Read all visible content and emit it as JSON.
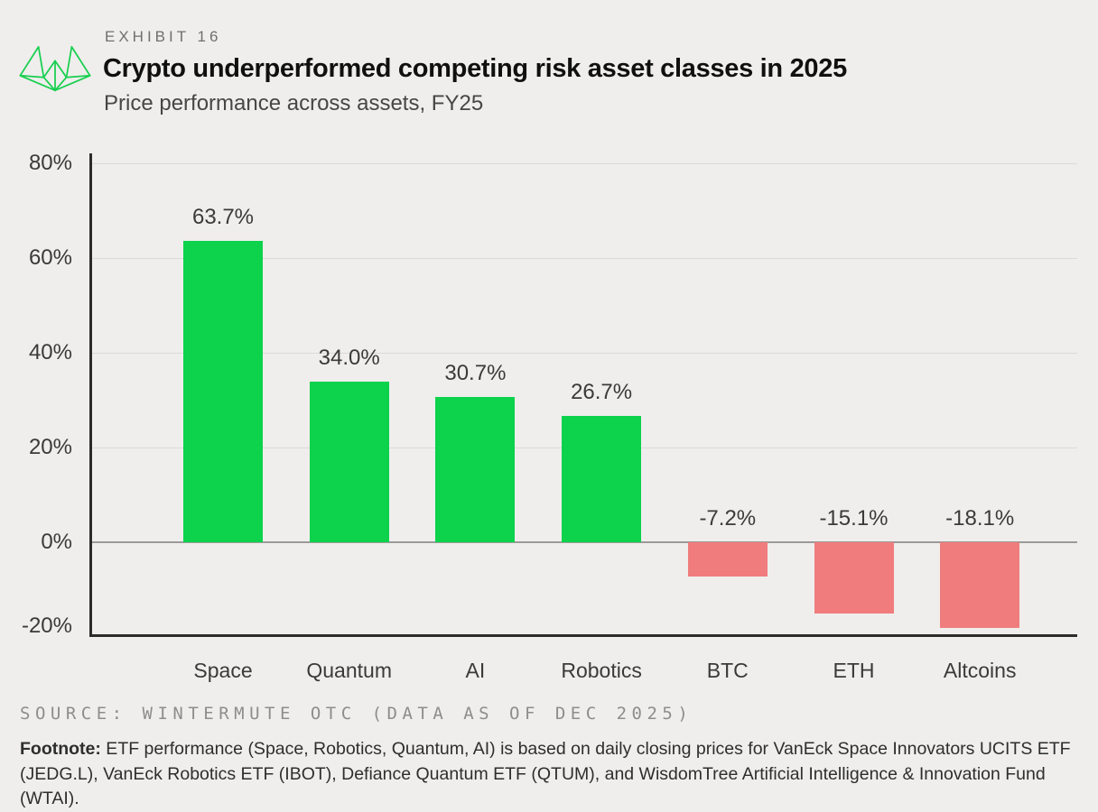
{
  "header": {
    "exhibit_label": "EXHIBIT 16"
  },
  "chart_data": {
    "type": "bar",
    "title": "Crypto underperformed competing risk asset classes in 2025",
    "subtitle": "Price performance across assets, FY25",
    "categories": [
      "Space",
      "Quantum",
      "AI",
      "Robotics",
      "BTC",
      "ETH",
      "Altcoins"
    ],
    "values": [
      63.7,
      34.0,
      30.7,
      26.7,
      -7.2,
      -15.1,
      -18.1
    ],
    "value_labels": [
      "63.7%",
      "34.0%",
      "30.7%",
      "26.7%",
      "-7.2%",
      "-15.1%",
      "-18.1%"
    ],
    "xlabel": "",
    "ylabel": "",
    "y_ticks": [
      80,
      60,
      40,
      20,
      0,
      -20
    ],
    "y_tick_labels": [
      "80%",
      "60%",
      "40%",
      "20%",
      "0%",
      "-20%"
    ],
    "ylim": [
      -20,
      82
    ],
    "grid": "horizontal-only",
    "legend": "none",
    "colors": {
      "positive_bar": "#0cd24c",
      "negative_bar": "#f07c7d",
      "axis": "#2b2b2b",
      "gridline": "#dbdad8",
      "zero_line": "#9b9a98",
      "logo_green": "#17cf4f"
    }
  },
  "footer": {
    "source": "SOURCE: WINTERMUTE OTC (DATA AS OF DEC 2025)",
    "footnote_label": "Footnote:",
    "footnote_text": " ETF performance (Space, Robotics, Quantum, AI) is based on daily closing prices for VanEck Space Innovators UCITS ETF (JEDG.L), VanEck Robotics ETF (IBOT), Defiance Quantum ETF (QTUM), and WisdomTree Artificial Intelligence & Innovation Fund (WTAI)."
  }
}
